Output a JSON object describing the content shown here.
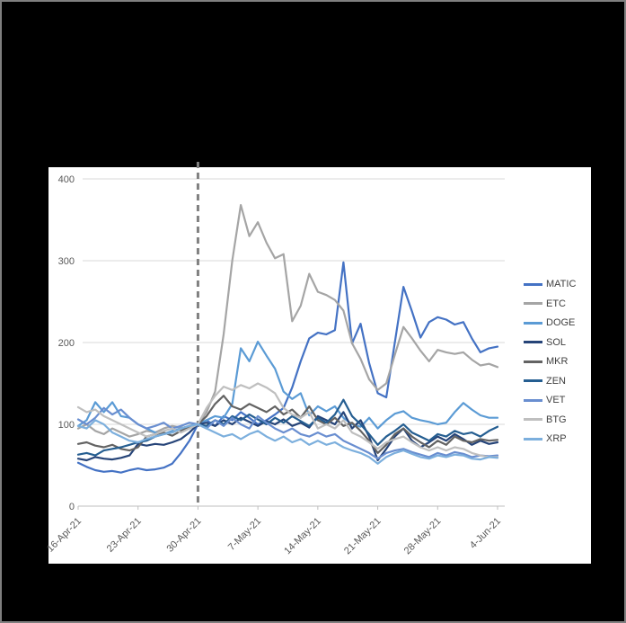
{
  "window": {
    "background_color": "#000000",
    "border_color": "#7F7F7F",
    "panel_color": "#FFFFFF"
  },
  "chart_data": {
    "type": "line",
    "title": "",
    "xlabel": "",
    "ylabel": "",
    "ylim": [
      0,
      400
    ],
    "yticks": [
      0,
      100,
      200,
      300,
      400
    ],
    "grid": true,
    "legend_position": "right",
    "gridline_color": "#D9D9D9",
    "axis_line_color": "#BFBFBF",
    "axis_label_color": "#595959",
    "annotation": {
      "type": "vline",
      "x": "30-Apr-21",
      "style": "dashed",
      "color": "#808080"
    },
    "x_tick_labels": [
      "16-Apr-21",
      "23-Apr-21",
      "30-Apr-21",
      "7-May-21",
      "14-May-21",
      "21-May-21",
      "28-May-21",
      "4-Jun-21"
    ],
    "x": [
      "16-Apr-21",
      "17-Apr-21",
      "18-Apr-21",
      "19-Apr-21",
      "20-Apr-21",
      "21-Apr-21",
      "22-Apr-21",
      "23-Apr-21",
      "24-Apr-21",
      "25-Apr-21",
      "26-Apr-21",
      "27-Apr-21",
      "28-Apr-21",
      "29-Apr-21",
      "30-Apr-21",
      "1-May-21",
      "2-May-21",
      "3-May-21",
      "4-May-21",
      "5-May-21",
      "6-May-21",
      "7-May-21",
      "8-May-21",
      "9-May-21",
      "10-May-21",
      "11-May-21",
      "12-May-21",
      "13-May-21",
      "14-May-21",
      "15-May-21",
      "16-May-21",
      "17-May-21",
      "18-May-21",
      "19-May-21",
      "20-May-21",
      "21-May-21",
      "22-May-21",
      "23-May-21",
      "24-May-21",
      "25-May-21",
      "26-May-21",
      "27-May-21",
      "28-May-21",
      "29-May-21",
      "30-May-21",
      "31-May-21",
      "1-Jun-21",
      "2-Jun-21",
      "3-Jun-21",
      "4-Jun-21"
    ],
    "series": [
      {
        "name": "MATIC",
        "color": "#4472C4",
        "values": [
          53,
          48,
          44,
          42,
          43,
          41,
          44,
          46,
          44,
          45,
          47,
          52,
          65,
          80,
          100,
          105,
          98,
          110,
          105,
          115,
          108,
          100,
          105,
          112,
          120,
          145,
          177,
          205,
          212,
          210,
          215,
          298,
          199,
          223,
          175,
          138,
          133,
          200,
          268,
          238,
          206,
          225,
          231,
          228,
          222,
          225,
          205,
          188,
          193,
          195
        ]
      },
      {
        "name": "ETC",
        "color": "#A5A5A5",
        "values": [
          95,
          100,
          92,
          88,
          95,
          90,
          85,
          88,
          92,
          90,
          95,
          98,
          96,
          95,
          100,
          115,
          140,
          210,
          300,
          368,
          330,
          347,
          322,
          303,
          308,
          226,
          245,
          284,
          262,
          258,
          252,
          239,
          199,
          180,
          155,
          142,
          150,
          185,
          219,
          205,
          190,
          177,
          191,
          188,
          186,
          188,
          179,
          172,
          174,
          170
        ]
      },
      {
        "name": "DOGE",
        "color": "#5B9BD5",
        "values": [
          98,
          105,
          127,
          115,
          127,
          110,
          108,
          100,
          95,
          90,
          88,
          92,
          95,
          97,
          100,
          105,
          110,
          108,
          125,
          193,
          177,
          201,
          184,
          168,
          140,
          131,
          138,
          111,
          122,
          116,
          122,
          108,
          100,
          97,
          108,
          95,
          105,
          113,
          116,
          108,
          105,
          103,
          100,
          102,
          115,
          126,
          118,
          111,
          108,
          108
        ]
      },
      {
        "name": "SOL",
        "color": "#264478",
        "values": [
          58,
          56,
          60,
          58,
          57,
          59,
          62,
          76,
          74,
          76,
          75,
          78,
          82,
          90,
          100,
          102,
          98,
          105,
          100,
          108,
          103,
          98,
          104,
          100,
          106,
          98,
          102,
          96,
          110,
          105,
          100,
          115,
          95,
          105,
          85,
          56,
          70,
          85,
          95,
          80,
          72,
          78,
          85,
          80,
          88,
          82,
          75,
          80,
          76,
          78
        ]
      },
      {
        "name": "MKR",
        "color": "#636363",
        "values": [
          76,
          78,
          74,
          72,
          75,
          70,
          68,
          72,
          85,
          88,
          90,
          86,
          92,
          96,
          100,
          110,
          125,
          135,
          122,
          118,
          125,
          120,
          115,
          122,
          112,
          118,
          108,
          122,
          105,
          100,
          108,
          98,
          102,
          92,
          80,
          65,
          75,
          88,
          95,
          85,
          78,
          72,
          80,
          75,
          85,
          80,
          78,
          82,
          80,
          81
        ]
      },
      {
        "name": "ZEN",
        "color": "#255E91",
        "values": [
          63,
          65,
          62,
          68,
          70,
          72,
          75,
          78,
          80,
          85,
          88,
          90,
          95,
          98,
          100,
          98,
          105,
          100,
          110,
          105,
          112,
          106,
          100,
          108,
          102,
          110,
          104,
          98,
          108,
          102,
          112,
          130,
          110,
          100,
          88,
          75,
          85,
          92,
          100,
          90,
          85,
          80,
          88,
          85,
          92,
          88,
          90,
          85,
          92,
          97
        ]
      },
      {
        "name": "VET",
        "color": "#698ED0",
        "values": [
          106,
          100,
          108,
          120,
          112,
          118,
          108,
          100,
          95,
          98,
          102,
          95,
          98,
          102,
          100,
          95,
          105,
          98,
          108,
          100,
          95,
          110,
          102,
          95,
          90,
          95,
          88,
          85,
          90,
          85,
          88,
          80,
          75,
          70,
          65,
          58,
          65,
          68,
          70,
          66,
          63,
          60,
          65,
          62,
          66,
          64,
          60,
          62,
          61,
          62
        ]
      },
      {
        "name": "BTG",
        "color": "#BFBFBF",
        "values": [
          121,
          115,
          118,
          110,
          105,
          100,
          95,
          90,
          85,
          88,
          92,
          95,
          90,
          95,
          100,
          120,
          135,
          146,
          142,
          148,
          144,
          150,
          145,
          138,
          120,
          112,
          108,
          115,
          95,
          100,
          95,
          105,
          90,
          85,
          78,
          70,
          78,
          82,
          85,
          78,
          72,
          68,
          72,
          68,
          72,
          70,
          65,
          62,
          60,
          60
        ]
      },
      {
        "name": "XRP",
        "color": "#7CAFDD",
        "values": [
          98,
          95,
          105,
          100,
          90,
          85,
          80,
          78,
          82,
          85,
          88,
          90,
          95,
          98,
          100,
          95,
          90,
          85,
          88,
          82,
          88,
          92,
          85,
          80,
          85,
          78,
          82,
          75,
          80,
          75,
          78,
          72,
          68,
          65,
          60,
          52,
          60,
          65,
          68,
          64,
          60,
          58,
          62,
          60,
          63,
          62,
          58,
          57,
          60,
          59
        ]
      }
    ]
  }
}
